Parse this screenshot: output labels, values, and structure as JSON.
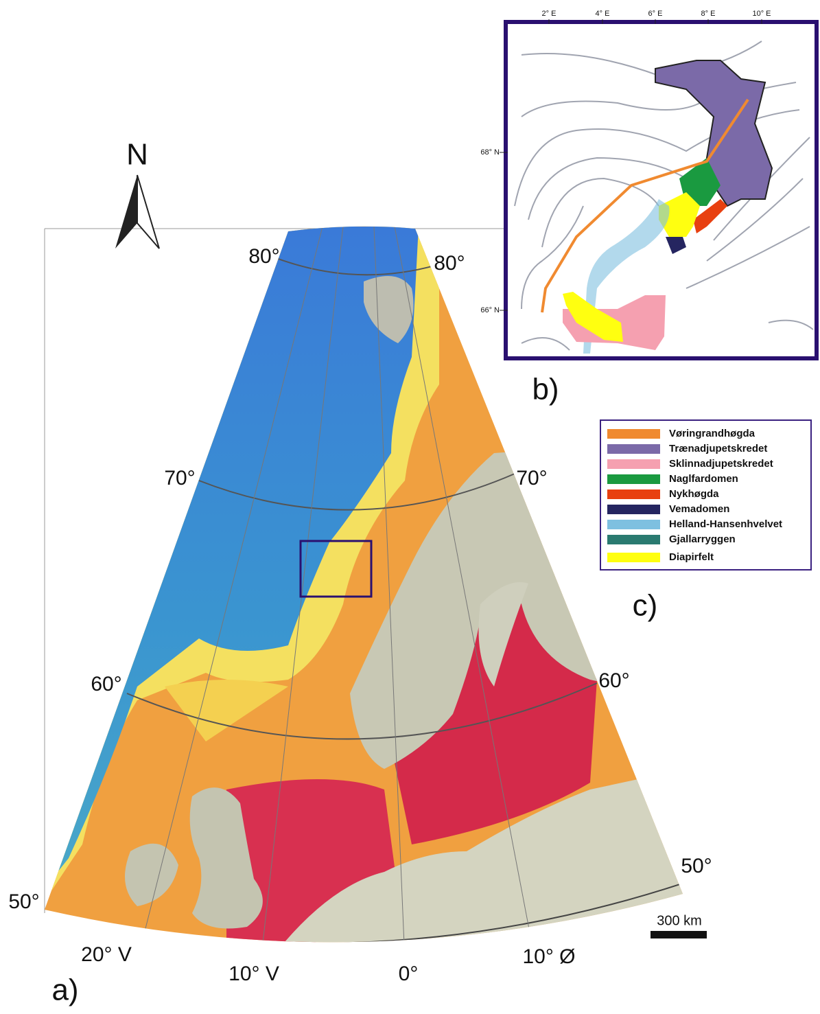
{
  "map": {
    "north": "N",
    "labels": [
      "80°",
      "80°",
      "70°",
      "70°",
      "60°",
      "60°",
      "50°",
      "50°",
      "20° V",
      "10° V",
      "0°",
      "10° Ø"
    ],
    "scale": "300 km",
    "panel_labels": [
      "a)",
      "b)",
      "c)"
    ]
  },
  "inset": {
    "xticks": [
      "2° E",
      "4° E",
      "6° E",
      "8° E",
      "10° E"
    ],
    "yticks": [
      "68° N",
      "66° N"
    ]
  },
  "legend": {
    "items": [
      {
        "name": "Vøringrandhøgda",
        "color": "#f08a30"
      },
      {
        "name": "Trænadjupetskredet",
        "color": "#7b6aa8"
      },
      {
        "name": "Sklinnadjupetskredet",
        "color": "#f5a0b0"
      },
      {
        "name": "Naglfardomen",
        "color": "#1a9a40"
      },
      {
        "name": "Nykhøgda",
        "color": "#e84010"
      },
      {
        "name": "Vemadomen",
        "color": "#252560"
      },
      {
        "name": "Helland-Hansenhvelvet",
        "color": "#7ec0e0"
      },
      {
        "name": "Gjallarryggen",
        "color": "#2a7a70"
      },
      {
        "name": "Diapirfelt",
        "color": "#ffff10"
      }
    ]
  }
}
